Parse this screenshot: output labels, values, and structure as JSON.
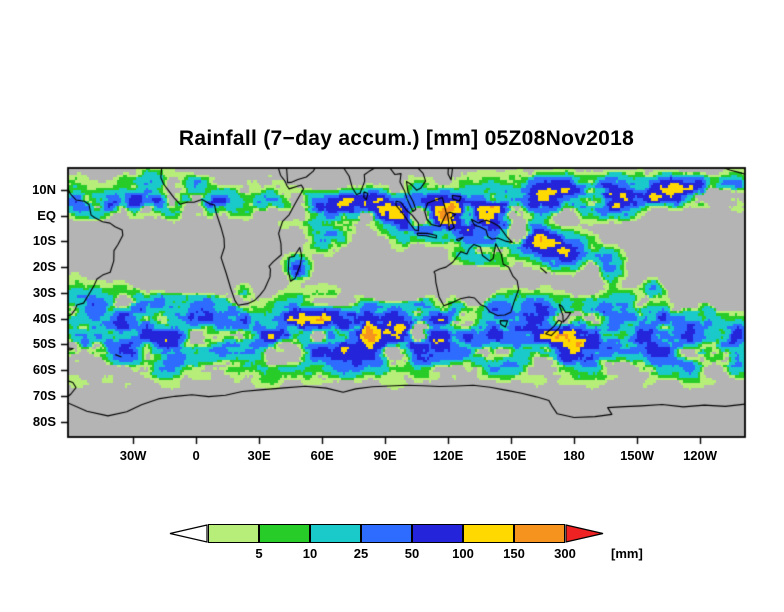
{
  "title": "Rainfall (7−day accum.) [mm] 05Z08Nov2018",
  "map": {
    "background_color": "#b4b4b4",
    "coastline_color": "#000000",
    "lon_range": [
      -61,
      261.4
    ],
    "lat_range": [
      18.5,
      -86
    ],
    "lat_ticks": [
      {
        "label": "10N",
        "lat": 10
      },
      {
        "label": "EQ",
        "lat": 0
      },
      {
        "label": "10S",
        "lat": -10
      },
      {
        "label": "20S",
        "lat": -20
      },
      {
        "label": "30S",
        "lat": -30
      },
      {
        "label": "40S",
        "lat": -40
      },
      {
        "label": "50S",
        "lat": -50
      },
      {
        "label": "60S",
        "lat": -60
      },
      {
        "label": "70S",
        "lat": -70
      },
      {
        "label": "80S",
        "lat": -80
      }
    ],
    "lon_ticks": [
      {
        "label": "30W",
        "lon": -30
      },
      {
        "label": "0",
        "lon": 0
      },
      {
        "label": "30E",
        "lon": 30
      },
      {
        "label": "60E",
        "lon": 60
      },
      {
        "label": "90E",
        "lon": 90
      },
      {
        "label": "120E",
        "lon": 120
      },
      {
        "label": "150E",
        "lon": 150
      },
      {
        "label": "180",
        "lon": 180
      },
      {
        "label": "150W",
        "lon": 210
      },
      {
        "label": "120W",
        "lon": 240
      }
    ]
  },
  "colorbar": {
    "levels": [
      "5",
      "10",
      "25",
      "50",
      "100",
      "150",
      "300"
    ],
    "unit": "[mm]"
  },
  "palette": {
    "below": "#ffffff",
    "colors": [
      "#b7ee7a",
      "#28cc28",
      "#1ac9c9",
      "#2e6bff",
      "#2424da",
      "#ffd900",
      "#f6921e",
      "#ee2222"
    ]
  },
  "rain_field": {
    "min_show": 1.5,
    "thresholds": [
      5,
      10,
      25,
      50,
      100,
      150,
      300
    ],
    "noise": {
      "fx": 0.085,
      "fy": 0.15,
      "mfx": 0.018,
      "mfy": 0.03,
      "floor": 0.3,
      "power": 1.6,
      "gain": 2.9
    },
    "polar_fade": {
      "start": -62,
      "end": -72,
      "min": 0.08
    },
    "bands": [
      {
        "lat": 5,
        "latW": 4,
        "lon0": -61,
        "lon1": 42,
        "amp": 95
      },
      {
        "lat": 3,
        "latW": 6,
        "lon0": 42,
        "lon1": 95,
        "amp": 120
      },
      {
        "lat": 1,
        "latW": 8,
        "lon0": 95,
        "lon1": 152,
        "amp": 185
      },
      {
        "lat": 7,
        "latW": 5,
        "lon0": 152,
        "lon1": 212,
        "amp": 120
      },
      {
        "lat": 9,
        "latW": 4,
        "lon0": 212,
        "lon1": 262,
        "amp": 105
      },
      {
        "lat": -50,
        "latW": 10,
        "lon0": -61,
        "lon1": 262,
        "amp": 92
      },
      {
        "lat": -36,
        "latW": 7,
        "lon0": -61,
        "lon1": 25,
        "amp": 65
      },
      {
        "lat": -42,
        "latW": 8,
        "lon0": 40,
        "lon1": 125,
        "amp": 80
      },
      {
        "lat": -38,
        "latW": 7,
        "lon0": 140,
        "lon1": 245,
        "amp": 70
      },
      {
        "lat": 14,
        "latW": 4,
        "lon0": -61,
        "lon1": 40,
        "amp": 40
      },
      {
        "lat": 12,
        "latW": 4,
        "lon0": 150,
        "lon1": 262,
        "amp": 45
      }
    ],
    "blobs": [
      {
        "lon": 80,
        "lat": 3,
        "lonR": 12,
        "latR": 5,
        "amp": 210
      },
      {
        "lon": 118,
        "lat": 2,
        "lonR": 10,
        "latR": 6,
        "amp": 150
      },
      {
        "lon": 48,
        "lat": -20,
        "lonR": 4,
        "latR": 3,
        "amp": 170
      },
      {
        "lon": 157,
        "lat": -9,
        "lonR": 8,
        "latR": 5,
        "amp": 170
      },
      {
        "lon": 171,
        "lat": -13,
        "lonR": 8,
        "latR": 5,
        "amp": 150
      },
      {
        "lon": 184,
        "lat": -17,
        "lonR": 8,
        "latR": 5,
        "amp": 130
      },
      {
        "lon": 196,
        "lat": -21,
        "lonR": 7,
        "latR": 5,
        "amp": 110
      },
      {
        "lon": 183,
        "lat": -50,
        "lonR": 11,
        "latR": 7,
        "amp": 150
      },
      {
        "lon": 214,
        "lat": -42,
        "lonR": 7,
        "latR": 9,
        "amp": 120
      },
      {
        "lon": 218,
        "lat": -30,
        "lonR": 5,
        "latR": 5,
        "amp": 90
      },
      {
        "lon": 63,
        "lat": -9,
        "lonR": 7,
        "latR": 4,
        "amp": 75
      },
      {
        "lon": 135,
        "lat": -14,
        "lonR": 12,
        "latR": 5,
        "amp": 70
      },
      {
        "lon": 100,
        "lat": -47,
        "lonR": 12,
        "latR": 7,
        "amp": 70
      }
    ],
    "dry": [
      {
        "lon": -5,
        "lat": -23,
        "lonR": 18,
        "latR": 8,
        "amp": 70
      },
      {
        "lon": 95,
        "lat": -27,
        "lonR": 14,
        "latR": 7,
        "amp": 70
      },
      {
        "lon": 243,
        "lat": -24,
        "lonR": 20,
        "latR": 10,
        "amp": 95
      },
      {
        "lon": 133,
        "lat": -26,
        "lonR": 9,
        "latR": 6,
        "amp": 55
      },
      {
        "lon": 237,
        "lat": -8,
        "lonR": 16,
        "latR": 6,
        "amp": 65
      },
      {
        "lon": 62,
        "lat": 16,
        "lonR": 12,
        "latR": 6,
        "amp": 70
      },
      {
        "lon": -45,
        "lat": 16,
        "lonR": 12,
        "latR": 5,
        "amp": 45
      },
      {
        "lon": 18,
        "lat": 18,
        "lonR": 18,
        "latR": 6,
        "amp": 60
      }
    ]
  },
  "coastlines": [
    [
      [
        -61,
        10.4
      ],
      [
        -59.8,
        8.4
      ],
      [
        -57.2,
        6.1
      ],
      [
        -53.2,
        5.6
      ],
      [
        -51,
        4.3
      ],
      [
        -50,
        0.2
      ],
      [
        -48,
        -0.9
      ],
      [
        -44.5,
        -2.4
      ],
      [
        -41,
        -2.9
      ],
      [
        -38.6,
        -4.3
      ],
      [
        -35.2,
        -5.6
      ],
      [
        -34.9,
        -7.6
      ],
      [
        -37.2,
        -11.2
      ],
      [
        -39.1,
        -13.6
      ],
      [
        -39.2,
        -17.6
      ],
      [
        -40.9,
        -22
      ],
      [
        -44.5,
        -23.1
      ],
      [
        -47.2,
        -24.6
      ],
      [
        -48.6,
        -27.2
      ],
      [
        -51.6,
        -31.3
      ],
      [
        -53.6,
        -34
      ],
      [
        -56.8,
        -34.7
      ],
      [
        -57.4,
        -36.2
      ],
      [
        -59.3,
        -38.4
      ],
      [
        -61,
        -38.9
      ]
    ],
    [
      [
        -16.4,
        18.5
      ],
      [
        -16.8,
        14.8
      ],
      [
        -15.5,
        12.3
      ],
      [
        -13.2,
        9.8
      ],
      [
        -10.5,
        6.9
      ],
      [
        -7.6,
        4.4
      ],
      [
        -4,
        5.3
      ],
      [
        -1,
        5.2
      ],
      [
        2.8,
        6.3
      ],
      [
        6.5,
        4.6
      ],
      [
        8.8,
        4.1
      ],
      [
        9.6,
        1
      ],
      [
        11.9,
        -4.7
      ],
      [
        13.3,
        -8.8
      ],
      [
        13.5,
        -12.3
      ],
      [
        11.9,
        -16.3
      ],
      [
        14.3,
        -22.3
      ],
      [
        16.6,
        -28.6
      ],
      [
        18.5,
        -33
      ],
      [
        20,
        -34.8
      ],
      [
        24.5,
        -34.2
      ],
      [
        27.8,
        -33
      ],
      [
        30.5,
        -30.8
      ],
      [
        32.6,
        -28.6
      ],
      [
        35.2,
        -23.8
      ],
      [
        35.4,
        -20.8
      ],
      [
        34.7,
        -19.7
      ],
      [
        36.8,
        -17.9
      ],
      [
        40.6,
        -15.2
      ],
      [
        40.4,
        -10.8
      ],
      [
        39.3,
        -6.9
      ],
      [
        41.2,
        -2.2
      ],
      [
        44.3,
        0.3
      ],
      [
        47.2,
        4.7
      ],
      [
        51.2,
        10.4
      ],
      [
        50.1,
        11.9
      ],
      [
        44.3,
        10.4
      ],
      [
        43.2,
        11.7
      ],
      [
        42.5,
        13.2
      ],
      [
        40.2,
        15.7
      ],
      [
        39.2,
        18.5
      ]
    ],
    [
      [
        44.3,
        -16.2
      ],
      [
        46.6,
        -15.9
      ],
      [
        49.4,
        -12.4
      ],
      [
        50.3,
        -15.7
      ],
      [
        49.6,
        -19.2
      ],
      [
        47.2,
        -24.3
      ],
      [
        45,
        -25.5
      ],
      [
        43.9,
        -21.4
      ],
      [
        44.1,
        -17.9
      ],
      [
        44.3,
        -16.2
      ]
    ],
    [
      [
        43.1,
        18.5
      ],
      [
        43.6,
        12.8
      ],
      [
        45.2,
        12.9
      ],
      [
        48.5,
        14
      ],
      [
        52.5,
        15
      ],
      [
        55.8,
        17.3
      ],
      [
        56.7,
        18.5
      ]
    ],
    [
      [
        70.3,
        18.5
      ],
      [
        72.9,
        15.3
      ],
      [
        74.4,
        10.8
      ],
      [
        76.4,
        8.2
      ],
      [
        78.1,
        8.7
      ],
      [
        80.3,
        13.4
      ],
      [
        80.1,
        15.9
      ],
      [
        82.4,
        17.2
      ],
      [
        85.1,
        18.5
      ]
    ],
    [
      [
        79.9,
        9.3
      ],
      [
        81.8,
        8.6
      ],
      [
        81.1,
        6.2
      ],
      [
        79.9,
        7.1
      ],
      [
        79.9,
        9.3
      ]
    ],
    [
      [
        92.3,
        18.5
      ],
      [
        94.6,
        16
      ],
      [
        97.6,
        16.3
      ],
      [
        97.1,
        13.1
      ],
      [
        99.3,
        9.6
      ],
      [
        100.4,
        6.6
      ],
      [
        103.2,
        1.6
      ],
      [
        104.6,
        2.4
      ],
      [
        103.4,
        5.4
      ],
      [
        100.9,
        9.2
      ],
      [
        100.2,
        13.3
      ],
      [
        102.4,
        12.1
      ],
      [
        105,
        9.9
      ],
      [
        106.9,
        10.6
      ],
      [
        109.3,
        13.4
      ],
      [
        108.1,
        16.4
      ],
      [
        105.7,
        18.5
      ]
    ],
    [
      [
        95.2,
        5.6
      ],
      [
        97.5,
        5.2
      ],
      [
        100.2,
        2.1
      ],
      [
        102.9,
        0.2
      ],
      [
        105.9,
        -2.9
      ],
      [
        105.9,
        -5.9
      ],
      [
        104.2,
        -5.6
      ],
      [
        101.2,
        -2.4
      ],
      [
        97.9,
        1.4
      ],
      [
        95.2,
        4
      ],
      [
        95.2,
        5.6
      ]
    ],
    [
      [
        105.2,
        -6.8
      ],
      [
        110.2,
        -6.9
      ],
      [
        114.5,
        -7.7
      ],
      [
        114.4,
        -8.7
      ],
      [
        109.5,
        -7.8
      ],
      [
        105.5,
        -7.6
      ],
      [
        105.2,
        -6.8
      ]
    ],
    [
      [
        117.3,
        7
      ],
      [
        119.2,
        0.8
      ],
      [
        116.2,
        -4.2
      ],
      [
        112.2,
        -3.5
      ],
      [
        110,
        -1.6
      ],
      [
        108.9,
        1.6
      ],
      [
        110.3,
        4.9
      ],
      [
        113.5,
        5.9
      ],
      [
        117.3,
        7
      ]
    ],
    [
      [
        119.6,
        0.9
      ],
      [
        120.3,
        -2.4
      ],
      [
        120.5,
        -5.7
      ],
      [
        122.9,
        -4.6
      ],
      [
        121.3,
        -0.8
      ],
      [
        123.6,
        0.4
      ],
      [
        121,
        1.3
      ],
      [
        119.6,
        0.9
      ]
    ],
    [
      [
        131,
        -1.4
      ],
      [
        134.4,
        -2.9
      ],
      [
        136.2,
        -2.2
      ],
      [
        138.2,
        -1.8
      ],
      [
        141.1,
        -2.7
      ],
      [
        144.2,
        -4.1
      ],
      [
        146.3,
        -6.3
      ],
      [
        148.2,
        -8.4
      ],
      [
        150.6,
        -10.4
      ],
      [
        147.3,
        -9.9
      ],
      [
        143.6,
        -8.7
      ],
      [
        141,
        -9.2
      ],
      [
        138.9,
        -8.1
      ],
      [
        138.1,
        -5.6
      ],
      [
        135.1,
        -4.3
      ],
      [
        132.9,
        -3.9
      ],
      [
        132,
        -2.9
      ],
      [
        131,
        -1.4
      ]
    ],
    [
      [
        123.8,
        -9.4
      ],
      [
        127.2,
        -8.4
      ],
      [
        125.1,
        -9.9
      ],
      [
        123.8,
        -9.4
      ]
    ],
    [
      [
        120.1,
        18.5
      ],
      [
        122.1,
        18.2
      ],
      [
        121.4,
        13.9
      ],
      [
        120,
        16.2
      ],
      [
        120.1,
        18.5
      ]
    ],
    [
      [
        121.9,
        7.9
      ],
      [
        126.2,
        7.3
      ],
      [
        125.4,
        5.7
      ],
      [
        122.3,
        6.4
      ],
      [
        121.9,
        7.9
      ]
    ],
    [
      [
        113.2,
        -21.8
      ],
      [
        113.8,
        -22.6
      ],
      [
        114.2,
        -26
      ],
      [
        115.7,
        -31.6
      ],
      [
        118,
        -35
      ],
      [
        121.9,
        -33.8
      ],
      [
        125.9,
        -32.3
      ],
      [
        129.9,
        -31.6
      ],
      [
        132.6,
        -32
      ],
      [
        135.5,
        -34.6
      ],
      [
        137.9,
        -35.4
      ],
      [
        139.8,
        -37.3
      ],
      [
        143.5,
        -38.8
      ],
      [
        147,
        -38.6
      ],
      [
        149.9,
        -37.5
      ],
      [
        151.5,
        -33.3
      ],
      [
        153.6,
        -28.6
      ],
      [
        152.9,
        -25.3
      ],
      [
        150.8,
        -23.4
      ],
      [
        148.8,
        -20
      ],
      [
        146.3,
        -18.9
      ],
      [
        145.3,
        -14.9
      ],
      [
        142.7,
        -10.9
      ],
      [
        141.5,
        -16.6
      ],
      [
        139.9,
        -17.7
      ],
      [
        136.4,
        -15.5
      ],
      [
        135.4,
        -12.2
      ],
      [
        132.3,
        -11.2
      ],
      [
        130.1,
        -12.9
      ],
      [
        129,
        -14.9
      ],
      [
        126.1,
        -14
      ],
      [
        122.2,
        -18.1
      ],
      [
        119,
        -20
      ],
      [
        116,
        -20.7
      ],
      [
        113.2,
        -21.8
      ]
    ],
    [
      [
        144.7,
        -40.8
      ],
      [
        148.3,
        -40.9
      ],
      [
        147.3,
        -43.3
      ],
      [
        145.2,
        -42.3
      ],
      [
        144.7,
        -40.8
      ]
    ],
    [
      [
        172.8,
        -34.4
      ],
      [
        174.4,
        -35.4
      ],
      [
        175.9,
        -37.6
      ],
      [
        178.4,
        -37.7
      ],
      [
        176.9,
        -39.6
      ],
      [
        174.8,
        -41.4
      ],
      [
        174.7,
        -38.9
      ],
      [
        172.8,
        -34.4
      ]
    ],
    [
      [
        172.7,
        -40.6
      ],
      [
        174.2,
        -41.2
      ],
      [
        172.8,
        -43.7
      ],
      [
        169.1,
        -46.6
      ],
      [
        166.5,
        -45.9
      ],
      [
        170.3,
        -43.1
      ],
      [
        172.7,
        -40.6
      ]
    ],
    [
      [
        163.9,
        -20.2
      ],
      [
        167,
        -22.4
      ]
    ],
    [
      [
        251.5,
        18.5
      ],
      [
        254.5,
        17.6
      ],
      [
        258,
        16.9
      ],
      [
        261.5,
        16.1
      ]
    ],
    [
      [
        -38.5,
        -54
      ],
      [
        -35.5,
        -54.9
      ]
    ],
    [
      [
        -61,
        -51.4
      ],
      [
        -58.5,
        -51.6
      ],
      [
        -60,
        -52.2
      ],
      [
        -61,
        -52
      ]
    ],
    [
      [
        -61,
        -64.2
      ],
      [
        -58.7,
        -64.8
      ],
      [
        -57.2,
        -66.8
      ],
      [
        -59.6,
        -69.3
      ],
      [
        -61,
        -70.3
      ]
    ],
    [
      [
        -61,
        -72.8
      ],
      [
        -52,
        -76
      ],
      [
        -42,
        -77.8
      ],
      [
        -33,
        -76.2
      ],
      [
        -26,
        -73.5
      ],
      [
        -18,
        -71.2
      ],
      [
        -10,
        -70.2
      ],
      [
        -2,
        -69.6
      ],
      [
        6,
        -70.3
      ],
      [
        14,
        -69.8
      ],
      [
        22,
        -68.3
      ],
      [
        32,
        -67.6
      ],
      [
        42,
        -66.9
      ],
      [
        52,
        -66.3
      ],
      [
        62,
        -67
      ],
      [
        70,
        -68.6
      ],
      [
        76,
        -67.3
      ],
      [
        84,
        -66.5
      ],
      [
        92,
        -66.2
      ],
      [
        100,
        -65.9
      ],
      [
        108,
        -66.1
      ],
      [
        116,
        -66.4
      ],
      [
        124,
        -66.2
      ],
      [
        132,
        -65.9
      ],
      [
        140,
        -66.7
      ],
      [
        148,
        -67.9
      ],
      [
        155,
        -69
      ],
      [
        162,
        -70.4
      ],
      [
        168,
        -71.8
      ],
      [
        169.5,
        -74
      ],
      [
        172,
        -77
      ],
      [
        180,
        -78.4
      ],
      [
        190,
        -78.1
      ],
      [
        198,
        -77.2
      ],
      [
        196,
        -74.6
      ],
      [
        204,
        -74.2
      ],
      [
        212,
        -73.9
      ],
      [
        222,
        -73.4
      ],
      [
        232,
        -74.3
      ],
      [
        242,
        -73.6
      ],
      [
        252,
        -74.1
      ],
      [
        261.5,
        -73.2
      ]
    ]
  ]
}
